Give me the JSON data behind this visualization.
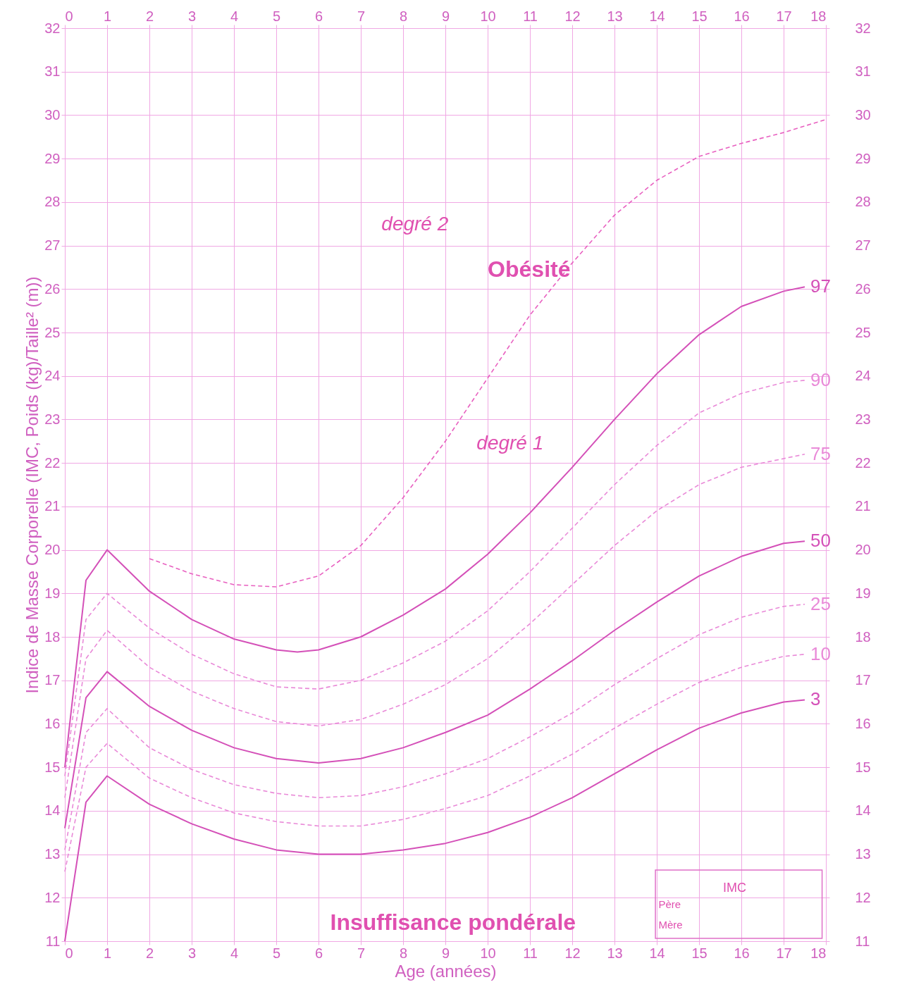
{
  "chart_data": {
    "type": "line",
    "xlabel": "Age (années)",
    "ylabel": "Indice de Masse Corporelle (IMC, Poids (kg)/Taille² (m))",
    "xlim": [
      0,
      18
    ],
    "xticks": [
      0,
      1,
      2,
      3,
      4,
      5,
      6,
      7,
      8,
      9,
      10,
      11,
      12,
      13,
      14,
      15,
      16,
      17,
      18
    ],
    "x2lim": [
      0,
      18
    ],
    "x2ticks": [
      0,
      1,
      2,
      3,
      4,
      5,
      6,
      7,
      8,
      9,
      10,
      11,
      12,
      13,
      14,
      15,
      16,
      17,
      18
    ],
    "ylim": [
      11,
      32
    ],
    "yticks": [
      11,
      12,
      13,
      14,
      15,
      16,
      17,
      18,
      19,
      20,
      21,
      22,
      23,
      24,
      25,
      26,
      27,
      28,
      29,
      30,
      31,
      32
    ],
    "y2lim": [
      11,
      32
    ],
    "y2ticks": [
      11,
      12,
      13,
      14,
      15,
      16,
      17,
      18,
      19,
      20,
      21,
      22,
      23,
      24,
      25,
      26,
      27,
      28,
      29,
      30,
      31,
      32
    ],
    "grid": true,
    "marker": "none",
    "annotations": [
      "degré 2",
      "Obésité",
      "degré 1",
      "Insuffisance pondérale",
      "IMC",
      "Père",
      "Mère"
    ],
    "series": [
      {
        "line_style": "dashed",
        "color": "#e860c0",
        "x": [
          2,
          3,
          4,
          5,
          6,
          7,
          8,
          9,
          10,
          11,
          12,
          13,
          14,
          15,
          16,
          17,
          18
        ],
        "values": [
          19.8,
          19.45,
          19.2,
          19.15,
          19.4,
          20.1,
          21.2,
          22.5,
          23.95,
          25.4,
          26.6,
          27.7,
          28.5,
          29.05,
          29.35,
          29.6,
          29.9
        ]
      },
      {
        "name": "97",
        "line_style": "solid",
        "color": "#d450b8",
        "x": [
          0,
          0.5,
          1,
          2,
          3,
          4,
          5,
          5.5,
          6,
          7,
          8,
          9,
          10,
          11,
          12,
          13,
          14,
          15,
          16,
          17,
          17.5
        ],
        "values": [
          15.0,
          19.3,
          20.0,
          19.05,
          18.4,
          17.95,
          17.7,
          17.65,
          17.7,
          18.0,
          18.5,
          19.1,
          19.9,
          20.85,
          21.9,
          23.0,
          24.05,
          24.95,
          25.6,
          25.95,
          26.05
        ]
      },
      {
        "name": "90",
        "line_style": "dashed",
        "color": "#e98ad8",
        "x": [
          0,
          0.5,
          1,
          2,
          3,
          4,
          5,
          6,
          7,
          8,
          9,
          10,
          11,
          12,
          13,
          14,
          15,
          16,
          17,
          17.5
        ],
        "values": [
          14.8,
          18.4,
          19.0,
          18.2,
          17.6,
          17.15,
          16.85,
          16.8,
          17.0,
          17.4,
          17.9,
          18.6,
          19.5,
          20.5,
          21.5,
          22.4,
          23.15,
          23.6,
          23.85,
          23.9
        ]
      },
      {
        "name": "75",
        "line_style": "dashed",
        "color": "#e98ad8",
        "x": [
          0,
          0.5,
          1,
          2,
          3,
          4,
          5,
          6,
          7,
          8,
          9,
          10,
          11,
          12,
          13,
          14,
          15,
          16,
          17,
          17.5
        ],
        "values": [
          14.3,
          17.5,
          18.15,
          17.3,
          16.75,
          16.35,
          16.05,
          15.95,
          16.1,
          16.45,
          16.9,
          17.5,
          18.3,
          19.2,
          20.1,
          20.9,
          21.5,
          21.9,
          22.1,
          22.2
        ]
      },
      {
        "name": "50",
        "line_style": "solid",
        "color": "#d450b8",
        "x": [
          0,
          0.5,
          1,
          2,
          3,
          4,
          5,
          6,
          7,
          8,
          9,
          10,
          11,
          12,
          13,
          14,
          15,
          16,
          17,
          17.5
        ],
        "values": [
          13.6,
          16.6,
          17.2,
          16.4,
          15.85,
          15.45,
          15.2,
          15.1,
          15.2,
          15.45,
          15.8,
          16.2,
          16.8,
          17.45,
          18.15,
          18.8,
          19.4,
          19.85,
          20.15,
          20.2
        ]
      },
      {
        "name": "25",
        "line_style": "dashed",
        "color": "#e98ad8",
        "x": [
          0,
          0.5,
          1,
          2,
          3,
          4,
          5,
          6,
          7,
          8,
          9,
          10,
          11,
          12,
          13,
          14,
          15,
          16,
          17,
          17.5
        ],
        "values": [
          13.1,
          15.8,
          16.35,
          15.45,
          14.95,
          14.6,
          14.4,
          14.3,
          14.35,
          14.55,
          14.85,
          15.2,
          15.7,
          16.25,
          16.9,
          17.5,
          18.05,
          18.45,
          18.7,
          18.75
        ]
      },
      {
        "name": "10",
        "line_style": "dashed",
        "color": "#e98ad8",
        "x": [
          0,
          0.5,
          1,
          2,
          3,
          4,
          5,
          6,
          7,
          8,
          9,
          10,
          11,
          12,
          13,
          14,
          15,
          16,
          17,
          17.5
        ],
        "values": [
          12.6,
          15.0,
          15.55,
          14.75,
          14.3,
          13.95,
          13.75,
          13.65,
          13.65,
          13.8,
          14.05,
          14.35,
          14.8,
          15.3,
          15.9,
          16.45,
          16.95,
          17.3,
          17.55,
          17.6
        ]
      },
      {
        "name": "3",
        "line_style": "solid",
        "color": "#d450b8",
        "x": [
          0,
          0.5,
          1,
          2,
          3,
          4,
          5,
          6,
          7,
          8,
          9,
          10,
          11,
          12,
          13,
          14,
          15,
          16,
          17,
          17.5
        ],
        "values": [
          11.0,
          14.2,
          14.8,
          14.15,
          13.7,
          13.35,
          13.1,
          13.0,
          13.0,
          13.1,
          13.25,
          13.5,
          13.85,
          14.3,
          14.85,
          15.4,
          15.9,
          16.25,
          16.5,
          16.55
        ]
      }
    ]
  }
}
